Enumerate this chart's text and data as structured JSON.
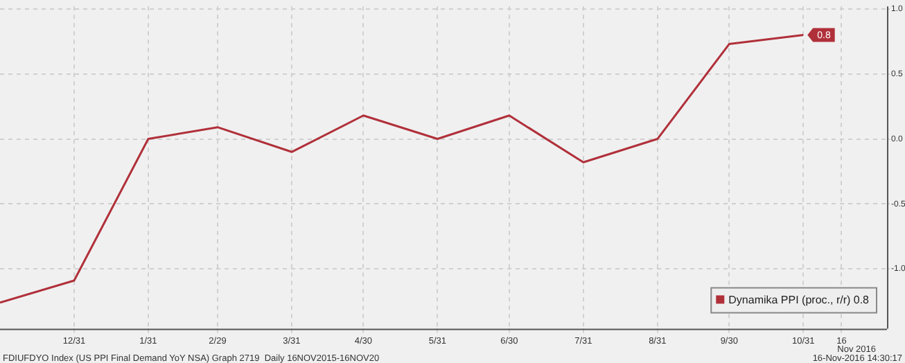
{
  "chart_data": {
    "type": "line",
    "xlabel": "Nov 2016",
    "x": [
      "2015-11-30",
      "2015-12-31",
      "2016-01-31",
      "2016-02-29",
      "2016-03-31",
      "2016-04-30",
      "2016-05-31",
      "2016-06-30",
      "2016-07-31",
      "2016-08-31",
      "2016-09-30",
      "2016-10-31"
    ],
    "series": [
      {
        "name": "Dynamika PPI (proc., r/r) 0.8",
        "color": "#b0303a",
        "values": [
          -1.26,
          -1.09,
          0.0,
          0.09,
          -0.1,
          0.18,
          0.0,
          0.18,
          -0.18,
          0.0,
          0.73,
          0.8
        ],
        "value_labels": [
          null,
          null,
          null,
          null,
          null,
          null,
          null,
          null,
          null,
          null,
          null,
          "0.8"
        ]
      }
    ],
    "xlim": [
      "2015-11-30",
      "2016-12-05"
    ],
    "xticks": [
      {
        "value": "2015-12-31",
        "label": "12/31"
      },
      {
        "value": "2016-01-31",
        "label": "1/31"
      },
      {
        "value": "2016-02-29",
        "label": "2/29"
      },
      {
        "value": "2016-03-31",
        "label": "3/31"
      },
      {
        "value": "2016-04-30",
        "label": "4/30"
      },
      {
        "value": "2016-05-31",
        "label": "5/31"
      },
      {
        "value": "2016-06-30",
        "label": "6/30"
      },
      {
        "value": "2016-07-31",
        "label": "7/31"
      },
      {
        "value": "2016-08-31",
        "label": "8/31"
      },
      {
        "value": "2016-09-30",
        "label": "9/30"
      },
      {
        "value": "2016-10-31",
        "label": "10/31"
      },
      {
        "value": "2016-11-16",
        "label": "16"
      }
    ],
    "ylim": [
      -1.46,
      1.02
    ],
    "yticks": [
      {
        "value": -1,
        "label": "-1.0"
      },
      {
        "value": -0.5,
        "label": "-0.5"
      },
      {
        "value": 0,
        "label": "0.0"
      },
      {
        "value": 0.5,
        "label": "0.5"
      },
      {
        "value": 1,
        "label": "1.0"
      }
    ],
    "grid": true,
    "legend": "bottom right",
    "marker": "none",
    "line_style": "solid",
    "annotations": [
      "FDIUFDYO Index (US PPI Final Demand YoY NSA) Graph 2719  Daily 16NOV2015-16NOV20",
      "16-Nov-2016 14:30:17"
    ]
  }
}
